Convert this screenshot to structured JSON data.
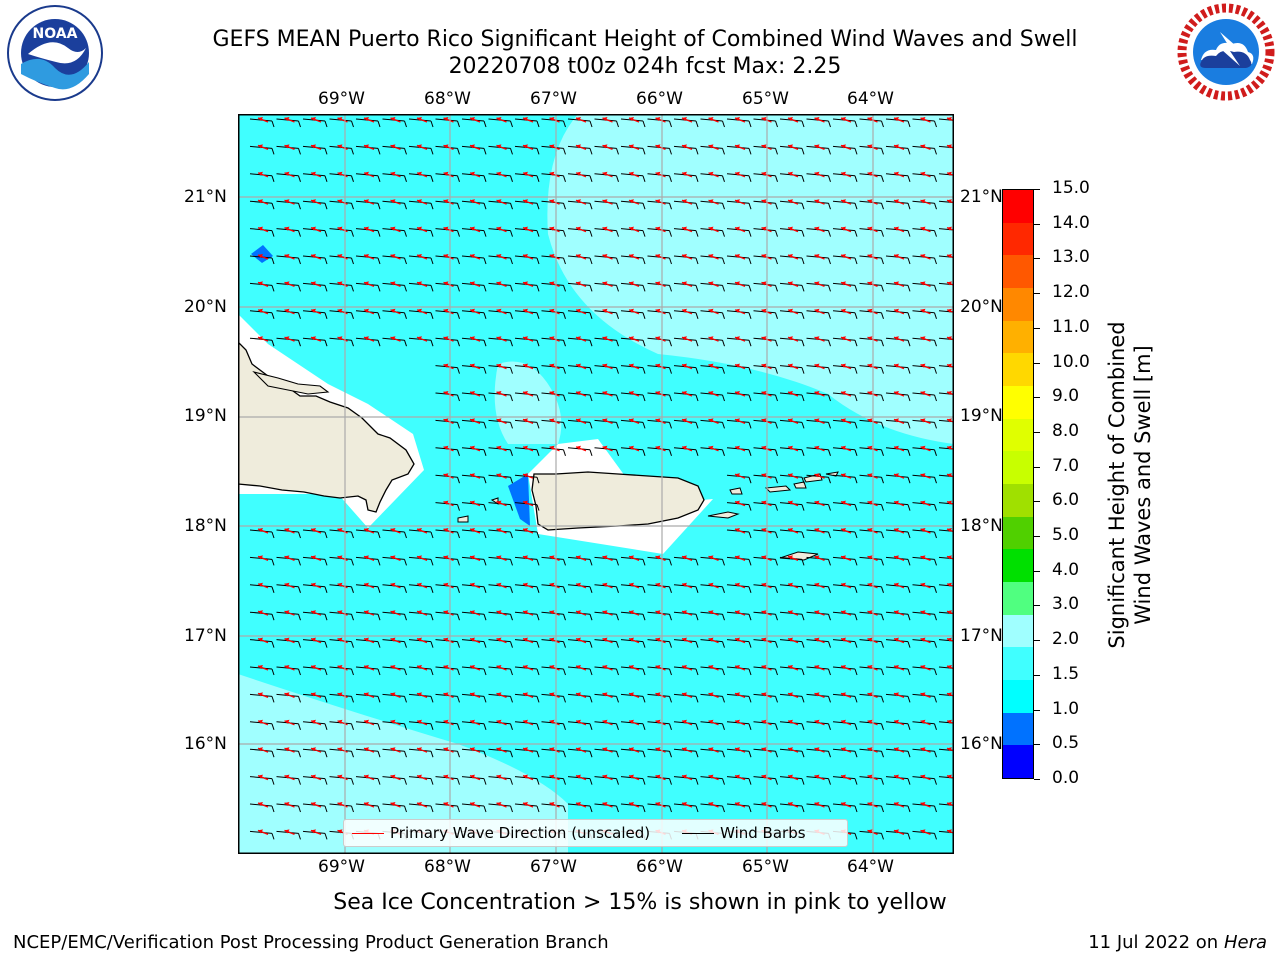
{
  "title": {
    "line1": "GEFS MEAN Puerto Rico Significant Height of Combined Wind Waves and Swell",
    "line2": "20220708 t00z 024h fcst   Max: 2.25"
  },
  "logos": {
    "left": "NOAA",
    "right": "NATIONAL WEATHER SERVICE"
  },
  "map": {
    "lon_labels": [
      "69°W",
      "68°W",
      "67°W",
      "66°W",
      "65°W",
      "64°W"
    ],
    "lat_labels": [
      "21°N",
      "20°N",
      "19°N",
      "18°N",
      "17°N",
      "16°N"
    ],
    "land_color": "#efecdc",
    "ocean_base_color": "#40ffff",
    "ocean_light_color": "#a0ffff",
    "wave_arrow_color": "#ff0000",
    "barb_color": "#000000"
  },
  "legend": {
    "wave_label": "Primary Wave Direction (unscaled)",
    "barb_label": "Wind Barbs"
  },
  "colorbar": {
    "label_line1": "Significant Height of Combined",
    "label_line2": "Wind Waves and Swell [m]",
    "ticks": [
      "0.0",
      "0.5",
      "1.0",
      "1.5",
      "2.0",
      "3.0",
      "4.0",
      "5.0",
      "6.0",
      "7.0",
      "8.0",
      "9.0",
      "10.0",
      "11.0",
      "12.0",
      "13.0",
      "14.0",
      "15.0"
    ],
    "colors": [
      "#0000ff",
      "#0072ff",
      "#00ffff",
      "#40ffff",
      "#a0ffff",
      "#50ff80",
      "#00e000",
      "#50d000",
      "#a0e000",
      "#c8ff00",
      "#e0ff00",
      "#ffff00",
      "#ffd800",
      "#ffb000",
      "#ff8800",
      "#ff5800",
      "#ff2800",
      "#ff0000"
    ]
  },
  "caption": "Sea Ice Concentration > 15% is shown in pink to yellow",
  "footer": {
    "left": "NCEP/EMC/Verification Post Processing Product Generation Branch",
    "date": "11 Jul 2022 on",
    "machine": "Hera"
  }
}
